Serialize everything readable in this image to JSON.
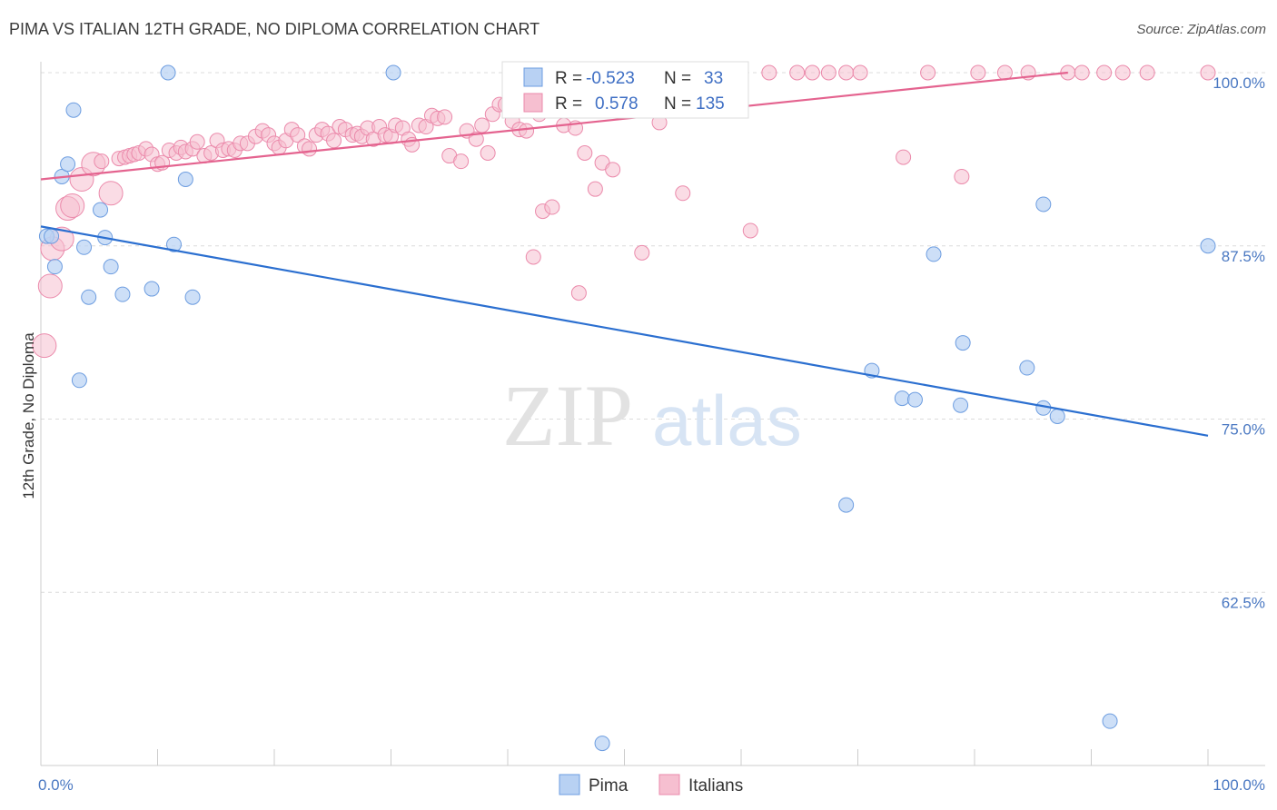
{
  "title": "PIMA VS ITALIAN 12TH GRADE, NO DIPLOMA CORRELATION CHART",
  "source": "Source: ZipAtlas.com",
  "watermark": {
    "zip": "ZIP",
    "atlas": "atlas"
  },
  "colors": {
    "pima_fill": "#b8d1f3",
    "pima_stroke": "#6d9de0",
    "pima_line": "#2b6fd0",
    "italians_fill": "#f6bfd0",
    "italians_stroke": "#eb8aab",
    "italians_line": "#e4638f",
    "grid": "#dcdcdc",
    "tick_text": "#4a78c2"
  },
  "legend_stats": [
    {
      "r_label": "R =",
      "r_value": "-0.523",
      "n_label": "N =",
      "n_value": "33"
    },
    {
      "r_label": "R =",
      "r_value": "0.578",
      "n_label": "N =",
      "n_value": "135"
    }
  ],
  "chart_data": {
    "type": "scatter",
    "xlabel": "",
    "ylabel": "12th Grade, No Diploma",
    "xlim": [
      0,
      100
    ],
    "ylim": [
      51,
      101
    ],
    "x_tick_labels": [
      "0.0%",
      "100.0%"
    ],
    "y_ticks": [
      62.5,
      75.0,
      87.5,
      100.0
    ],
    "y_tick_labels": [
      "62.5%",
      "75.0%",
      "87.5%",
      "100.0%"
    ],
    "grid": "horizontal dashed",
    "legend_position": "bottom-center",
    "series": [
      {
        "name": "Pima",
        "trend": [
          [
            0,
            88.9
          ],
          [
            100,
            73.8
          ]
        ],
        "points": [
          [
            0.5,
            88.2
          ],
          [
            0.9,
            88.2
          ],
          [
            1.2,
            86.0
          ],
          [
            1.8,
            92.5
          ],
          [
            2.3,
            93.4
          ],
          [
            2.8,
            97.3
          ],
          [
            3.3,
            77.8
          ],
          [
            3.7,
            87.4
          ],
          [
            4.1,
            83.8
          ],
          [
            5.1,
            90.1
          ],
          [
            5.5,
            88.1
          ],
          [
            6.0,
            86.0
          ],
          [
            7.0,
            84.0
          ],
          [
            9.5,
            84.4
          ],
          [
            10.9,
            100.0
          ],
          [
            11.4,
            87.6
          ],
          [
            12.4,
            92.3
          ],
          [
            13.0,
            83.8
          ],
          [
            30.2,
            100.0
          ],
          [
            48.1,
            51.6
          ],
          [
            69.0,
            68.8
          ],
          [
            71.2,
            78.5
          ],
          [
            73.8,
            76.5
          ],
          [
            74.9,
            76.4
          ],
          [
            76.5,
            86.9
          ],
          [
            78.8,
            76.0
          ],
          [
            79.0,
            80.5
          ],
          [
            84.5,
            78.7
          ],
          [
            85.9,
            75.8
          ],
          [
            85.9,
            90.5
          ],
          [
            87.1,
            75.2
          ],
          [
            91.6,
            53.2
          ],
          [
            100.0,
            87.5
          ]
        ]
      },
      {
        "name": "Italians",
        "trend": [
          [
            0,
            92.3
          ],
          [
            88,
            100.0
          ]
        ],
        "points": [
          [
            0.3,
            80.3
          ],
          [
            0.8,
            84.6
          ],
          [
            1.0,
            87.3
          ],
          [
            1.8,
            88.0
          ],
          [
            2.3,
            90.2
          ],
          [
            2.7,
            90.4
          ],
          [
            3.5,
            92.3
          ],
          [
            4.5,
            93.4
          ],
          [
            5.2,
            93.6
          ],
          [
            6.0,
            91.3
          ],
          [
            6.7,
            93.8
          ],
          [
            7.2,
            93.9
          ],
          [
            7.6,
            94.0
          ],
          [
            8.0,
            94.1
          ],
          [
            8.4,
            94.2
          ],
          [
            9.0,
            94.5
          ],
          [
            9.5,
            94.1
          ],
          [
            10.0,
            93.4
          ],
          [
            10.4,
            93.5
          ],
          [
            11.0,
            94.4
          ],
          [
            11.6,
            94.2
          ],
          [
            12.0,
            94.6
          ],
          [
            12.4,
            94.3
          ],
          [
            13.0,
            94.5
          ],
          [
            13.4,
            95.0
          ],
          [
            14.0,
            94.0
          ],
          [
            14.6,
            94.2
          ],
          [
            15.1,
            95.1
          ],
          [
            15.6,
            94.4
          ],
          [
            16.1,
            94.5
          ],
          [
            16.6,
            94.4
          ],
          [
            17.1,
            94.9
          ],
          [
            17.7,
            94.9
          ],
          [
            18.4,
            95.4
          ],
          [
            19.0,
            95.8
          ],
          [
            19.5,
            95.5
          ],
          [
            20.0,
            94.9
          ],
          [
            20.4,
            94.6
          ],
          [
            21.0,
            95.1
          ],
          [
            21.5,
            95.9
          ],
          [
            22.0,
            95.5
          ],
          [
            22.6,
            94.7
          ],
          [
            23.0,
            94.5
          ],
          [
            23.6,
            95.5
          ],
          [
            24.1,
            95.9
          ],
          [
            24.6,
            95.6
          ],
          [
            25.1,
            95.1
          ],
          [
            25.6,
            96.1
          ],
          [
            26.1,
            95.9
          ],
          [
            26.7,
            95.5
          ],
          [
            27.1,
            95.6
          ],
          [
            27.5,
            95.4
          ],
          [
            28.0,
            96.0
          ],
          [
            28.5,
            95.2
          ],
          [
            29.0,
            96.1
          ],
          [
            29.5,
            95.5
          ],
          [
            30.0,
            95.4
          ],
          [
            30.4,
            96.2
          ],
          [
            31.0,
            96.0
          ],
          [
            31.5,
            95.2
          ],
          [
            31.8,
            94.8
          ],
          [
            32.4,
            96.2
          ],
          [
            33.0,
            96.1
          ],
          [
            33.5,
            96.9
          ],
          [
            34.0,
            96.7
          ],
          [
            34.6,
            96.8
          ],
          [
            35.0,
            94.0
          ],
          [
            36.0,
            93.6
          ],
          [
            36.5,
            95.8
          ],
          [
            37.3,
            95.2
          ],
          [
            37.8,
            96.2
          ],
          [
            38.3,
            94.2
          ],
          [
            38.7,
            97.0
          ],
          [
            39.3,
            97.7
          ],
          [
            39.8,
            97.7
          ],
          [
            40.4,
            96.5
          ],
          [
            41.0,
            95.9
          ],
          [
            41.6,
            95.8
          ],
          [
            42.2,
            86.7
          ],
          [
            42.7,
            97.0
          ],
          [
            43.0,
            90.0
          ],
          [
            43.8,
            90.3
          ],
          [
            44.2,
            97.3
          ],
          [
            44.8,
            96.2
          ],
          [
            45.3,
            97.4
          ],
          [
            45.8,
            96.0
          ],
          [
            46.1,
            84.1
          ],
          [
            46.6,
            94.2
          ],
          [
            47.5,
            91.6
          ],
          [
            48.1,
            93.5
          ],
          [
            48.8,
            99.3
          ],
          [
            49.0,
            93.0
          ],
          [
            49.5,
            98.8
          ],
          [
            50.3,
            100.0
          ],
          [
            51.0,
            99.9
          ],
          [
            51.5,
            87.0
          ],
          [
            52.0,
            98.5
          ],
          [
            52.7,
            100.0
          ],
          [
            53.0,
            96.4
          ],
          [
            53.6,
            100.0
          ],
          [
            54.1,
            100.0
          ],
          [
            54.6,
            100.0
          ],
          [
            55.0,
            91.3
          ],
          [
            55.6,
            100.0
          ],
          [
            56.1,
            99.5
          ],
          [
            56.6,
            100.0
          ],
          [
            57.0,
            100.0
          ],
          [
            57.6,
            100.0
          ],
          [
            58.1,
            100.0
          ],
          [
            58.6,
            100.0
          ],
          [
            59.0,
            100.0
          ],
          [
            59.8,
            100.0
          ],
          [
            60.8,
            88.6
          ],
          [
            62.4,
            100.0
          ],
          [
            64.8,
            100.0
          ],
          [
            66.1,
            100.0
          ],
          [
            67.5,
            100.0
          ],
          [
            69.0,
            100.0
          ],
          [
            70.2,
            100.0
          ],
          [
            73.9,
            93.9
          ],
          [
            76.0,
            100.0
          ],
          [
            78.9,
            92.5
          ],
          [
            80.3,
            100.0
          ],
          [
            82.6,
            100.0
          ],
          [
            84.6,
            100.0
          ],
          [
            88.0,
            100.0
          ],
          [
            89.2,
            100.0
          ],
          [
            91.1,
            100.0
          ],
          [
            92.7,
            100.0
          ],
          [
            94.8,
            100.0
          ],
          [
            100.0,
            100.0
          ]
        ]
      }
    ],
    "big_points": {
      "Italians": [
        0.3,
        0.8,
        1.0,
        1.8,
        2.3,
        2.7,
        3.5,
        4.5,
        6.0
      ]
    }
  }
}
